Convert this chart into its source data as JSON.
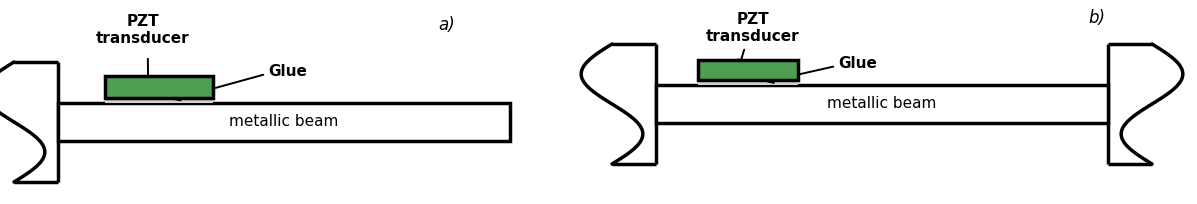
{
  "fig_width": 11.97,
  "fig_height": 2.04,
  "dpi": 100,
  "bg_color": "#ffffff",
  "line_color": "#000000",
  "green_color": "#4e9e52",
  "glue_color": "#d0d0d0",
  "label_a": "a)",
  "label_b": "b)",
  "label_pzt": "PZT\ntransducer",
  "label_glue": "Glue",
  "label_beam": "metallic beam",
  "lw": 2.5
}
